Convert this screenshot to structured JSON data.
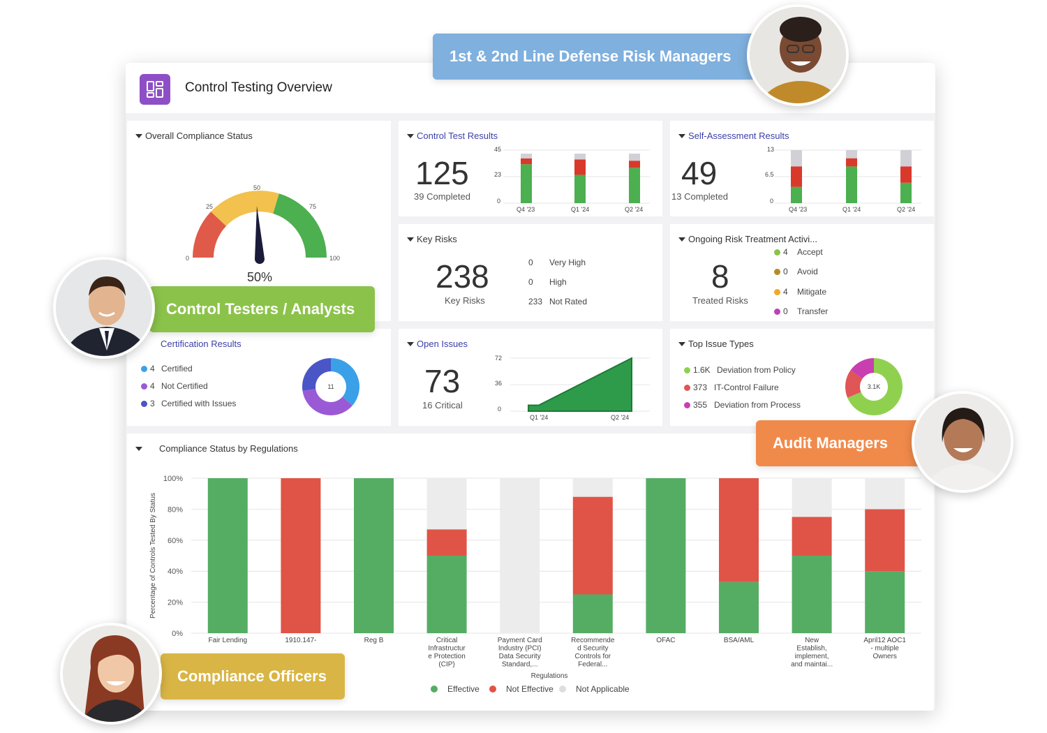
{
  "header": {
    "title": "Control Testing Overview",
    "icon": "dashboard-grid-icon",
    "icon_color": "#8e4fc6"
  },
  "personas": [
    {
      "label": "1st & 2nd Line Defense Risk Managers",
      "color": "#7fb0de"
    },
    {
      "label": "Control Testers / Analysts",
      "color": "#8bc34a"
    },
    {
      "label": "Audit Managers",
      "color": "#f08a4b"
    },
    {
      "label": "Compliance Officers",
      "color": "#d9b545"
    }
  ],
  "overall": {
    "title": "Overall Compliance Status",
    "value": "50%",
    "ticks": [
      "0",
      "25",
      "50",
      "75",
      "100"
    ]
  },
  "control_test": {
    "title": "Control Test Results",
    "total": "125",
    "completed": "39 Completed",
    "y_ticks": [
      "45",
      "23",
      "0"
    ],
    "x_labels": [
      "Q4 '23",
      "Q1 '24",
      "Q2 '24"
    ]
  },
  "self_assessment": {
    "title": "Self-Assessment Results",
    "total": "49",
    "completed": "13 Completed",
    "y_ticks": [
      "13",
      "6.5",
      "0"
    ],
    "x_labels": [
      "Q4 '23",
      "Q1 '24",
      "Q2 '24"
    ]
  },
  "key_risks": {
    "title": "Key Risks",
    "total": "238",
    "label": "Key Risks",
    "rows": [
      {
        "count": "0",
        "label": "Very High"
      },
      {
        "count": "0",
        "label": "High"
      },
      {
        "count": "233",
        "label": "Not Rated"
      }
    ]
  },
  "ongoing": {
    "title": "Ongoing Risk Treatment Activi...",
    "total": "8",
    "label": "Treated Risks",
    "rows": [
      {
        "count": "4",
        "label": "Accept",
        "color": "#8bc34a"
      },
      {
        "count": "0",
        "label": "Avoid",
        "color": "#b58a2a"
      },
      {
        "count": "4",
        "label": "Mitigate",
        "color": "#f5a623"
      },
      {
        "count": "0",
        "label": "Transfer",
        "color": "#c03fb5"
      }
    ]
  },
  "certification": {
    "title": "Certification Results",
    "center": "11",
    "rows": [
      {
        "count": "4",
        "label": "Certified",
        "color": "#3aa0e8"
      },
      {
        "count": "4",
        "label": "Not Certified",
        "color": "#9a5ad6"
      },
      {
        "count": "3",
        "label": "Certified with Issues",
        "color": "#4a55c6"
      }
    ]
  },
  "open_issues": {
    "title": "Open Issues",
    "total": "73",
    "critical": "16 Critical",
    "y_ticks": [
      "72",
      "36",
      "0"
    ],
    "x_labels": [
      "Q1 '24",
      "Q2 '24"
    ]
  },
  "top_issue": {
    "title": "Top Issue Types",
    "center": "3.1K",
    "rows": [
      {
        "count": "1.6K",
        "label": "Deviation from Policy",
        "color": "#8fd14f"
      },
      {
        "count": "373",
        "label": "IT-Control Failure",
        "color": "#e05555"
      },
      {
        "count": "355",
        "label": "Deviation from Process",
        "color": "#c83fb0"
      }
    ]
  },
  "chart_data": [
    {
      "type": "bar",
      "name": "Control Test Results",
      "stacked": true,
      "categories": [
        "Q4 '23",
        "Q1 '24",
        "Q2 '24"
      ],
      "ylim": [
        0,
        45
      ],
      "series": [
        {
          "values": [
            33,
            24,
            30
          ],
          "color": "#4caf50"
        },
        {
          "values": [
            5,
            13,
            6
          ],
          "color": "#d9392b"
        },
        {
          "values": [
            4,
            5,
            6
          ],
          "color": "#d0d0d6"
        }
      ]
    },
    {
      "type": "bar",
      "name": "Self-Assessment Results",
      "stacked": true,
      "categories": [
        "Q4 '23",
        "Q1 '24",
        "Q2 '24"
      ],
      "ylim": [
        0,
        13
      ],
      "series": [
        {
          "values": [
            4,
            9,
            5
          ],
          "color": "#4caf50"
        },
        {
          "values": [
            5,
            2,
            4
          ],
          "color": "#d9392b"
        },
        {
          "values": [
            4,
            2,
            4
          ],
          "color": "#d0d0d6"
        }
      ]
    },
    {
      "type": "area",
      "name": "Open Issues",
      "categories": [
        "Q1 '24",
        "Q2 '24"
      ],
      "ylim": [
        0,
        72
      ],
      "x": [
        0,
        0.1,
        1
      ],
      "values": [
        8,
        8,
        72
      ],
      "color": "#2e9b4a"
    },
    {
      "type": "pie",
      "name": "Certification Results",
      "labels": [
        "Certified",
        "Not Certified",
        "Certified with Issues"
      ],
      "values": [
        4,
        4,
        3
      ],
      "colors": [
        "#3aa0e8",
        "#9a5ad6",
        "#4a55c6"
      ]
    },
    {
      "type": "pie",
      "name": "Top Issue Types",
      "labels": [
        "Deviation from Policy",
        "IT-Control Failure",
        "Deviation from Process"
      ],
      "values": [
        1600,
        373,
        355
      ],
      "colors": [
        "#8fd14f",
        "#e05555",
        "#c83fb0"
      ]
    },
    {
      "type": "bar",
      "name": "Compliance Status by Regulations",
      "title": "Compliance Status by Regulations",
      "stacked": true,
      "xlabel": "Regulations",
      "ylabel": "Percentage of Controls Tested By Status",
      "y_ticks": [
        "100%",
        "80%",
        "60%",
        "40%",
        "20%",
        "0%"
      ],
      "ylim": [
        0,
        100
      ],
      "legend": "bottom",
      "categories": [
        "Fair Lending",
        "1910.147-",
        "Reg B",
        "Critical Infrastructure Protection (CIP)",
        "Payment Card Industry (PCI) Data Security Standard,...",
        "Recommended Security Controls for Federal...",
        "OFAC",
        "BSA/AML",
        "New Establish, implement, and maintai...",
        "April12 AOC1 - multiple Owners"
      ],
      "category_lines": [
        [
          "Fair Lending"
        ],
        [
          "1910.147-"
        ],
        [
          "Reg B"
        ],
        [
          "Critical",
          "Infrastructur",
          "e Protection",
          "(CIP)"
        ],
        [
          "Payment Card",
          "Industry (PCI)",
          "Data Security",
          "Standard,..."
        ],
        [
          "Recommende",
          "d Security",
          "Controls for",
          "Federal..."
        ],
        [
          "OFAC"
        ],
        [
          "BSA/AML"
        ],
        [
          "New",
          "Establish,",
          "implement,",
          "and maintai..."
        ],
        [
          "April12 AOC1",
          "- multiple",
          "Owners"
        ]
      ],
      "series": [
        {
          "name": "Effective",
          "color": "#55ad64",
          "values": [
            100,
            0,
            100,
            50,
            0,
            25,
            100,
            33,
            50,
            40
          ]
        },
        {
          "name": "Not Effective",
          "color": "#df5446",
          "values": [
            0,
            100,
            0,
            17,
            0,
            63,
            0,
            67,
            25,
            40
          ]
        },
        {
          "name": "Not Applicable",
          "color": "#ececec",
          "values": [
            0,
            0,
            0,
            33,
            100,
            12,
            0,
            0,
            25,
            20
          ]
        }
      ]
    }
  ]
}
